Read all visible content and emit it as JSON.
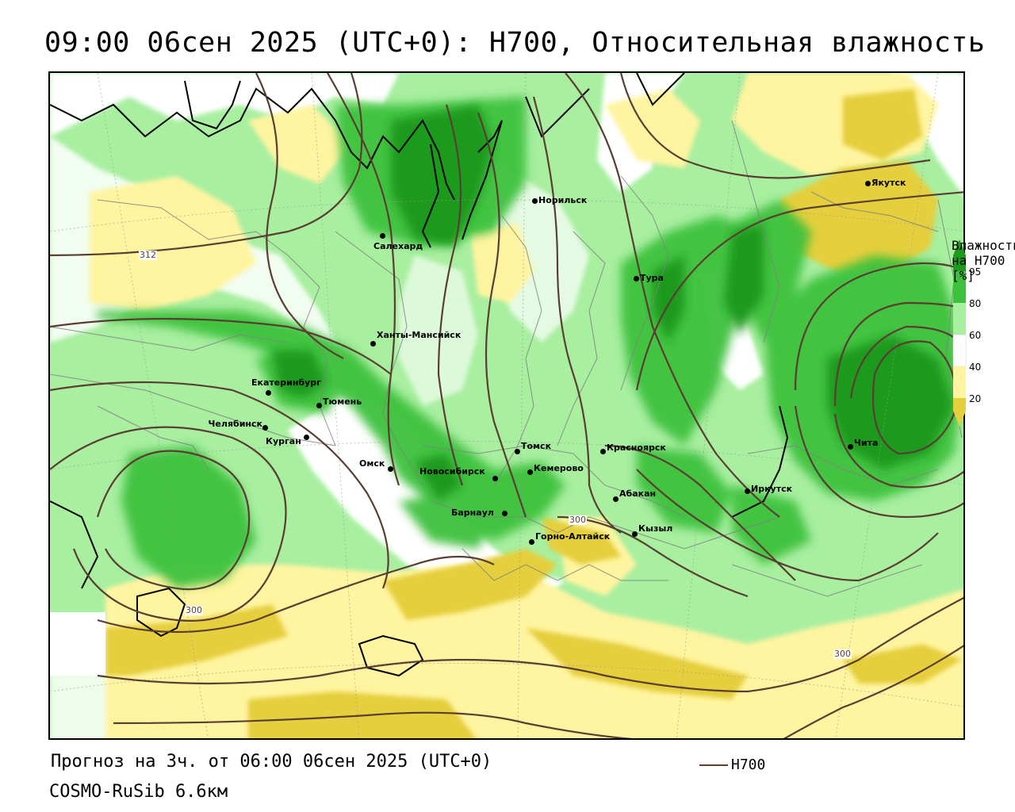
{
  "title": "09:00 06сен 2025 (UTC+0): H700, Относительная влажность",
  "footer": {
    "forecast": "Прогноз на 3ч. от 06:00 06сен 2025 (UTC+0)",
    "model": "COSMO-RuSib 6.6км",
    "line_legend": "H700"
  },
  "legend": {
    "caption": "Влажность на H700 [%]",
    "levels": [
      "95",
      "80",
      "60",
      "40",
      "20"
    ],
    "colors": {
      "95_100": "#1e9a1e",
      "80_95": "#3cc13c",
      "60_80": "#a8efa0",
      "40_60": "#ffffff",
      "20_40": "#fff4a0",
      "0_20": "#e5cf3c"
    }
  },
  "contour_labels": [
    "312",
    "300",
    "300",
    "300"
  ],
  "contour_color": "#5a3d33",
  "cities": [
    {
      "name": "Салехард"
    },
    {
      "name": "Норильск"
    },
    {
      "name": "Якутск"
    },
    {
      "name": "Тура"
    },
    {
      "name": "Ханты-Мансийск"
    },
    {
      "name": "Екатеринбург"
    },
    {
      "name": "Тюмень"
    },
    {
      "name": "Челябинск"
    },
    {
      "name": "Курган"
    },
    {
      "name": "Омск"
    },
    {
      "name": "Новосибирск"
    },
    {
      "name": "Томск"
    },
    {
      "name": "Кемерово"
    },
    {
      "name": "Красноярск"
    },
    {
      "name": "Абакан"
    },
    {
      "name": "Барнаул"
    },
    {
      "name": "Горно-Алтайск"
    },
    {
      "name": "Кызыл"
    },
    {
      "name": "Иркутск"
    },
    {
      "name": "Чита"
    }
  ]
}
